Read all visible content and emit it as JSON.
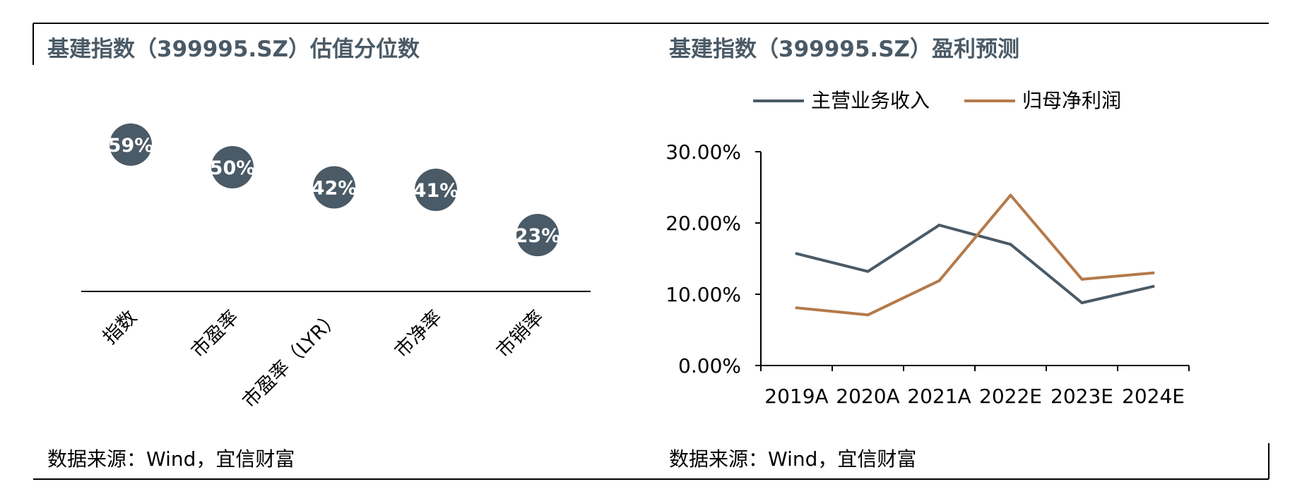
{
  "panels": {
    "left": {
      "title": "基建指数（399995.SZ）估值分位数",
      "source": "数据来源：Wind，宜信财富"
    },
    "right": {
      "title": "基建指数（399995.SZ）盈利预测",
      "source": "数据来源：Wind，宜信财富"
    }
  },
  "colors": {
    "dot": "#4a5a66",
    "revenue": "#4a5a66",
    "profit": "#b47a4a",
    "axis": "#000000"
  },
  "chart_data": [
    {
      "type": "scatter",
      "title": "基建指数（399995.SZ）估值分位数",
      "categories": [
        "指数",
        "市盈率",
        "市盈率（LYR）",
        "市净率",
        "市销率"
      ],
      "values": [
        59,
        50,
        42,
        41,
        23
      ],
      "value_labels": [
        "59%",
        "50%",
        "42%",
        "41%",
        "23%"
      ],
      "ylim": [
        0,
        100
      ],
      "grid": false
    },
    {
      "type": "line",
      "title": "基建指数（399995.SZ）盈利预测",
      "categories": [
        "2019A",
        "2020A",
        "2021A",
        "2022E",
        "2023E",
        "2024E"
      ],
      "series": [
        {
          "name": "主营业务收入",
          "values": [
            15.7,
            13.2,
            19.7,
            17.0,
            8.8,
            11.1
          ]
        },
        {
          "name": "归母净利润",
          "values": [
            8.1,
            7.1,
            11.9,
            23.9,
            12.1,
            13.0
          ]
        }
      ],
      "yticks": [
        "0.00%",
        "10.00%",
        "20.00%",
        "30.00%"
      ],
      "ylim": [
        0,
        30
      ],
      "legend": "top",
      "grid": false
    }
  ]
}
